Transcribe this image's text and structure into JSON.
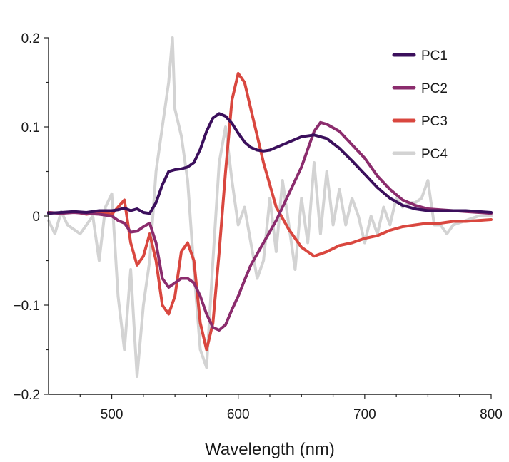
{
  "chart_data": {
    "type": "line",
    "title": "",
    "xlabel": "Wavelength (nm)",
    "ylabel": "",
    "xlim": [
      450,
      800
    ],
    "ylim": [
      -0.2,
      0.2
    ],
    "x_ticks": [
      500,
      600,
      700,
      800
    ],
    "x_minor_ticks": [
      475,
      525,
      550,
      575,
      625,
      650,
      675,
      725,
      750,
      775
    ],
    "y_ticks": [
      {
        "value": 0.2,
        "label": "0.2"
      },
      {
        "value": 0.1,
        "label": "0.1"
      },
      {
        "value": 0,
        "label": "0"
      },
      {
        "value": -0.1,
        "label": "−0.1"
      },
      {
        "value": -0.2,
        "label": "−0.2"
      }
    ],
    "y_minor_ticks": [
      0.15,
      0.05,
      -0.05,
      -0.15
    ],
    "grid": false,
    "legend": {
      "placement": "top-right"
    },
    "series": [
      {
        "name": "PC1",
        "color": "#3b0f5c",
        "x": [
          450,
          460,
          470,
          480,
          490,
          500,
          505,
          510,
          515,
          520,
          525,
          530,
          535,
          540,
          545,
          550,
          555,
          560,
          565,
          570,
          575,
          580,
          585,
          590,
          595,
          600,
          605,
          610,
          615,
          620,
          625,
          630,
          640,
          650,
          660,
          670,
          680,
          690,
          700,
          710,
          720,
          730,
          740,
          750,
          760,
          770,
          780,
          790,
          800
        ],
        "y": [
          0.003,
          0.004,
          0.005,
          0.004,
          0.006,
          0.006,
          0.007,
          0.009,
          0.006,
          0.008,
          0.004,
          0.003,
          0.015,
          0.035,
          0.05,
          0.052,
          0.053,
          0.055,
          0.06,
          0.075,
          0.095,
          0.11,
          0.115,
          0.112,
          0.104,
          0.093,
          0.083,
          0.077,
          0.074,
          0.073,
          0.074,
          0.077,
          0.083,
          0.089,
          0.091,
          0.087,
          0.076,
          0.062,
          0.047,
          0.032,
          0.02,
          0.012,
          0.008,
          0.006,
          0.006,
          0.006,
          0.006,
          0.005,
          0.004
        ]
      },
      {
        "name": "PC2",
        "color": "#8b2c6d",
        "x": [
          450,
          460,
          470,
          480,
          490,
          500,
          505,
          510,
          515,
          520,
          525,
          530,
          535,
          540,
          545,
          550,
          555,
          560,
          565,
          570,
          575,
          580,
          585,
          590,
          595,
          600,
          605,
          610,
          620,
          630,
          640,
          650,
          655,
          660,
          665,
          670,
          680,
          690,
          700,
          710,
          720,
          730,
          740,
          750,
          760,
          770,
          780,
          790,
          800
        ],
        "y": [
          0.004,
          0.003,
          0.004,
          0.003,
          0.002,
          0.0,
          -0.005,
          -0.008,
          -0.018,
          -0.017,
          -0.012,
          -0.008,
          -0.03,
          -0.07,
          -0.08,
          -0.075,
          -0.07,
          -0.07,
          -0.075,
          -0.09,
          -0.11,
          -0.125,
          -0.128,
          -0.122,
          -0.105,
          -0.09,
          -0.072,
          -0.055,
          -0.03,
          -0.005,
          0.025,
          0.055,
          0.075,
          0.095,
          0.105,
          0.103,
          0.095,
          0.08,
          0.065,
          0.045,
          0.03,
          0.018,
          0.012,
          0.008,
          0.007,
          0.006,
          0.005,
          0.004,
          0.003
        ]
      },
      {
        "name": "PC3",
        "color": "#d9473f",
        "x": [
          450,
          460,
          470,
          480,
          490,
          495,
          500,
          505,
          510,
          515,
          520,
          525,
          530,
          535,
          540,
          545,
          550,
          555,
          560,
          565,
          570,
          575,
          580,
          585,
          590,
          595,
          600,
          605,
          610,
          615,
          620,
          630,
          640,
          650,
          660,
          670,
          680,
          690,
          700,
          710,
          720,
          730,
          740,
          750,
          760,
          770,
          780,
          790,
          800
        ],
        "y": [
          0.004,
          0.003,
          0.005,
          0.002,
          0.004,
          0.003,
          0.002,
          0.01,
          0.018,
          -0.03,
          -0.055,
          -0.045,
          -0.02,
          -0.05,
          -0.1,
          -0.11,
          -0.09,
          -0.04,
          -0.03,
          -0.05,
          -0.12,
          -0.15,
          -0.12,
          -0.04,
          0.05,
          0.13,
          0.16,
          0.15,
          0.12,
          0.09,
          0.06,
          0.01,
          -0.015,
          -0.035,
          -0.045,
          -0.04,
          -0.033,
          -0.03,
          -0.025,
          -0.022,
          -0.016,
          -0.012,
          -0.01,
          -0.008,
          -0.008,
          -0.006,
          -0.006,
          -0.005,
          -0.004
        ]
      },
      {
        "name": "PC4",
        "color": "#d3d3d3",
        "x": [
          450,
          455,
          460,
          465,
          470,
          475,
          480,
          485,
          490,
          495,
          500,
          505,
          510,
          515,
          520,
          525,
          530,
          535,
          540,
          545,
          548,
          550,
          555,
          560,
          565,
          570,
          575,
          580,
          585,
          590,
          595,
          600,
          605,
          610,
          615,
          620,
          625,
          630,
          635,
          640,
          645,
          650,
          655,
          660,
          665,
          670,
          675,
          680,
          685,
          690,
          695,
          700,
          705,
          710,
          715,
          720,
          725,
          730,
          735,
          740,
          745,
          750,
          755,
          760,
          765,
          770,
          780,
          790,
          800
        ],
        "y": [
          -0.005,
          -0.02,
          0.005,
          -0.01,
          -0.015,
          -0.02,
          -0.01,
          0.0,
          -0.05,
          0.01,
          0.025,
          -0.09,
          -0.15,
          -0.06,
          -0.18,
          -0.1,
          -0.05,
          0.05,
          0.1,
          0.15,
          0.2,
          0.12,
          0.09,
          0.04,
          -0.06,
          -0.15,
          -0.17,
          -0.05,
          0.06,
          0.1,
          0.04,
          -0.01,
          0.01,
          -0.03,
          -0.07,
          -0.05,
          0.02,
          -0.04,
          0.04,
          -0.01,
          -0.06,
          0.02,
          -0.03,
          0.06,
          -0.02,
          0.05,
          -0.01,
          0.03,
          -0.01,
          0.02,
          0.0,
          -0.03,
          0.0,
          -0.02,
          0.01,
          -0.01,
          0.02,
          0.01,
          0.015,
          0.015,
          0.02,
          0.04,
          -0.01,
          -0.01,
          -0.02,
          -0.01,
          -0.005,
          0.0,
          0.0
        ]
      }
    ]
  }
}
